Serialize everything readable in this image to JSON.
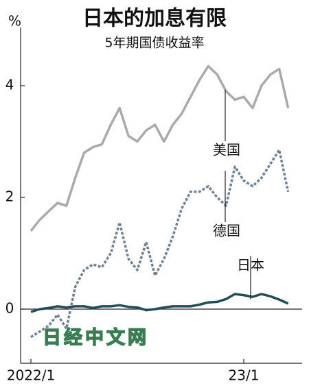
{
  "chart_data": {
    "type": "line",
    "title": "日本的加息有限",
    "subtitle": "5年期国债收益率",
    "y_unit": "%",
    "categories": [
      "2022/1",
      null,
      null,
      null,
      null,
      null,
      null,
      null,
      null,
      null,
      null,
      null,
      null,
      null,
      null,
      null,
      null,
      null,
      null,
      null,
      null,
      null,
      null,
      null,
      "23/1",
      null,
      null,
      null,
      null,
      null
    ],
    "series": [
      {
        "name": "美国",
        "color": "#aaaaaa",
        "dashed": false,
        "values": [
          1.4,
          1.6,
          1.75,
          1.9,
          1.85,
          2.35,
          2.8,
          2.9,
          2.95,
          3.3,
          3.6,
          3.1,
          3.0,
          3.2,
          3.3,
          3.0,
          3.3,
          3.5,
          3.8,
          4.1,
          4.35,
          4.2,
          3.9,
          3.75,
          3.8,
          3.6,
          4.0,
          4.2,
          4.3,
          3.6
        ]
      },
      {
        "name": "德国",
        "color": "#6f8294",
        "dashed": true,
        "values": [
          -0.5,
          -0.4,
          -0.3,
          -0.1,
          -0.35,
          0.4,
          0.7,
          0.8,
          0.75,
          1.0,
          1.55,
          0.9,
          0.7,
          1.2,
          0.6,
          0.9,
          1.3,
          1.8,
          2.1,
          2.1,
          2.2,
          2.0,
          1.85,
          2.55,
          2.3,
          2.2,
          2.35,
          2.6,
          2.85,
          2.1
        ]
      },
      {
        "name": "日本",
        "color": "#1f4e5a",
        "dashed": false,
        "values": [
          -0.05,
          0.0,
          0.02,
          0.05,
          0.03,
          0.05,
          0.05,
          0.02,
          0.05,
          0.05,
          0.07,
          0.04,
          0.03,
          -0.02,
          0.0,
          0.03,
          0.05,
          0.05,
          0.05,
          0.08,
          0.12,
          0.13,
          0.18,
          0.27,
          0.25,
          0.22,
          0.27,
          0.23,
          0.17,
          0.1
        ]
      }
    ],
    "ylim": [
      -1,
      5
    ],
    "yticks": [
      0,
      2,
      4
    ],
    "zero_line": true
  },
  "watermark": "日经中文网"
}
